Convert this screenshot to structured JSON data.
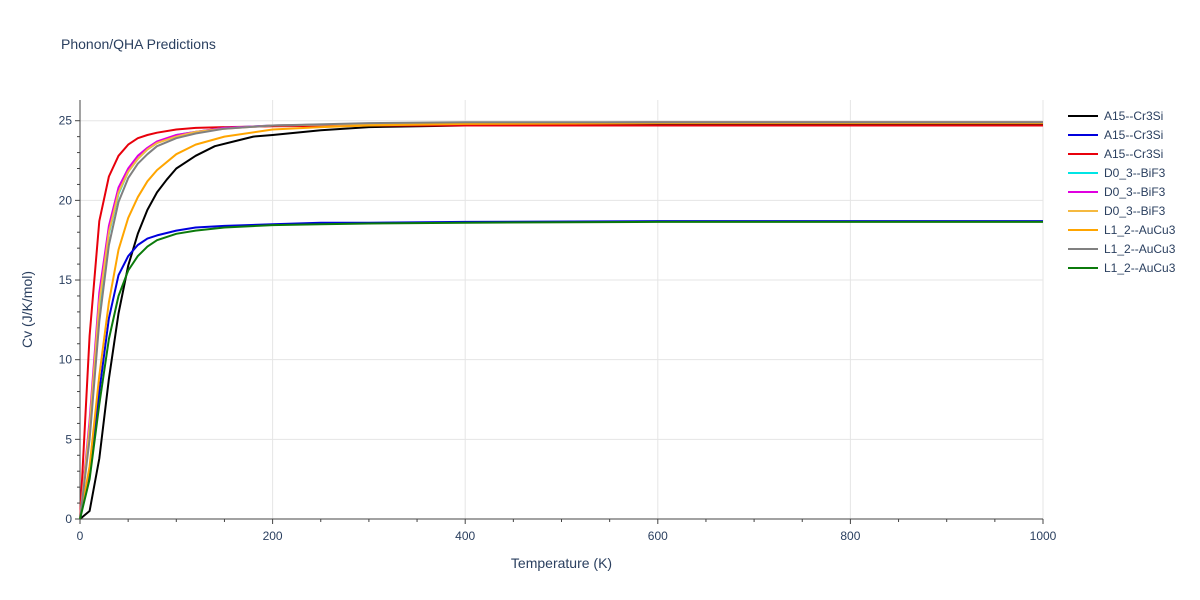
{
  "chart_data": {
    "type": "line",
    "title": "Phonon/QHA Predictions",
    "xlabel": "Temperature (K)",
    "ylabel": "Cv (J/K/mol)",
    "xlim": [
      0,
      1000
    ],
    "ylim": [
      0,
      26.3
    ],
    "xticks": [
      0,
      200,
      400,
      600,
      800,
      1000
    ],
    "yticks": [
      0,
      5,
      10,
      15,
      20,
      25
    ],
    "grid": true,
    "legend_position": "right",
    "series": [
      {
        "name": "A15--Cr3Si",
        "color": "#000000",
        "x": [
          0,
          10,
          20,
          30,
          40,
          50,
          60,
          70,
          80,
          90,
          100,
          120,
          140,
          160,
          180,
          200,
          250,
          300,
          400,
          600,
          800,
          1000
        ],
        "y": [
          0,
          0.5,
          3.8,
          8.8,
          12.9,
          15.9,
          17.9,
          19.4,
          20.5,
          21.3,
          22.0,
          22.8,
          23.4,
          23.7,
          24.0,
          24.1,
          24.4,
          24.6,
          24.7,
          24.8,
          24.8,
          24.8
        ]
      },
      {
        "name": "A15--Cr3Si",
        "color": "#0000dd",
        "x": [
          0,
          10,
          20,
          30,
          40,
          50,
          60,
          70,
          80,
          100,
          120,
          150,
          200,
          250,
          300,
          400,
          600,
          800,
          1000
        ],
        "y": [
          0,
          3.0,
          8.0,
          12.6,
          15.3,
          16.5,
          17.2,
          17.6,
          17.8,
          18.1,
          18.3,
          18.4,
          18.5,
          18.6,
          18.6,
          18.65,
          18.7,
          18.7,
          18.7
        ]
      },
      {
        "name": "A15--Cr3Si",
        "color": "#e8000b",
        "x": [
          0,
          10,
          20,
          30,
          40,
          50,
          60,
          70,
          80,
          100,
          120,
          150,
          200,
          300,
          400,
          600,
          800,
          1000
        ],
        "y": [
          0,
          11.5,
          18.7,
          21.5,
          22.8,
          23.5,
          23.9,
          24.1,
          24.25,
          24.45,
          24.55,
          24.6,
          24.65,
          24.7,
          24.7,
          24.7,
          24.7,
          24.7
        ]
      },
      {
        "name": "D0_3--BiF3",
        "color": "#00e5e5",
        "x": [
          0,
          10,
          20,
          30,
          40,
          50,
          60,
          70,
          80,
          100,
          120,
          150,
          200,
          300,
          400,
          600,
          800,
          1000
        ],
        "y": [
          0,
          5.6,
          13.3,
          17.9,
          20.4,
          21.8,
          22.6,
          23.2,
          23.6,
          24.1,
          24.3,
          24.55,
          24.7,
          24.8,
          24.85,
          24.9,
          24.9,
          24.9
        ]
      },
      {
        "name": "D0_3--BiF3",
        "color": "#e000e0",
        "x": [
          0,
          10,
          20,
          30,
          40,
          50,
          60,
          70,
          80,
          100,
          120,
          150,
          200,
          300,
          400,
          600,
          800,
          1000
        ],
        "y": [
          0,
          6.2,
          14.2,
          18.4,
          20.8,
          22.0,
          22.8,
          23.3,
          23.7,
          24.1,
          24.3,
          24.55,
          24.7,
          24.8,
          24.85,
          24.9,
          24.9,
          24.9
        ]
      },
      {
        "name": "D0_3--BiF3",
        "color": "#f5b940",
        "x": [
          0,
          10,
          20,
          30,
          40,
          50,
          60,
          70,
          80,
          100,
          120,
          150,
          200,
          300,
          400,
          600,
          800,
          1000
        ],
        "y": [
          0,
          5.8,
          13.6,
          18.0,
          20.5,
          21.8,
          22.6,
          23.2,
          23.6,
          24.0,
          24.3,
          24.5,
          24.7,
          24.8,
          24.85,
          24.9,
          24.9,
          24.9
        ]
      },
      {
        "name": "L1_2--AuCu3",
        "color": "#ffa500",
        "x": [
          0,
          10,
          20,
          30,
          40,
          50,
          60,
          70,
          80,
          100,
          120,
          150,
          200,
          250,
          300,
          400,
          600,
          800,
          1000
        ],
        "y": [
          0,
          3.3,
          9.0,
          13.6,
          16.9,
          18.9,
          20.2,
          21.2,
          21.9,
          22.9,
          23.5,
          24.0,
          24.45,
          24.6,
          24.7,
          24.8,
          24.85,
          24.85,
          24.85
        ]
      },
      {
        "name": "L1_2--AuCu3",
        "color": "#808080",
        "x": [
          0,
          10,
          20,
          30,
          40,
          50,
          60,
          70,
          80,
          100,
          120,
          150,
          200,
          300,
          400,
          600,
          800,
          1000
        ],
        "y": [
          0,
          5.0,
          12.4,
          17.2,
          19.9,
          21.4,
          22.3,
          22.9,
          23.4,
          23.9,
          24.2,
          24.5,
          24.7,
          24.85,
          24.9,
          24.9,
          24.9,
          24.9
        ]
      },
      {
        "name": "L1_2--AuCu3",
        "color": "#0b7a0b",
        "x": [
          0,
          10,
          20,
          30,
          40,
          50,
          60,
          70,
          80,
          100,
          120,
          150,
          200,
          250,
          300,
          400,
          600,
          800,
          1000
        ],
        "y": [
          0,
          2.5,
          7.2,
          11.3,
          14.0,
          15.6,
          16.5,
          17.1,
          17.5,
          17.9,
          18.1,
          18.3,
          18.45,
          18.5,
          18.55,
          18.6,
          18.65,
          18.65,
          18.65
        ]
      }
    ]
  }
}
